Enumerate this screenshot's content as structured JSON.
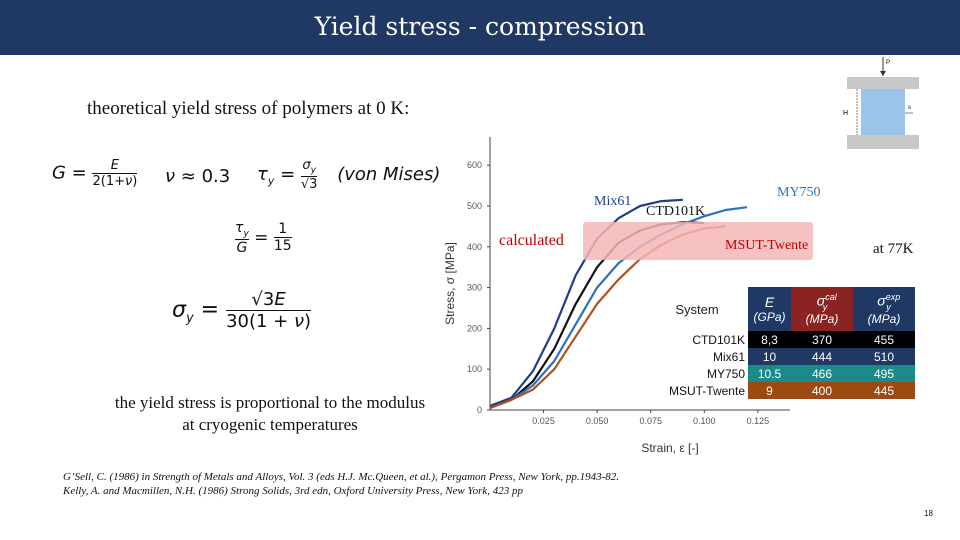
{
  "header": {
    "title": "Yield stress - compression"
  },
  "subtitle": "theoretical yield stress of polymers at 0 K:",
  "equations": {
    "shear_modulus": "G = E / 2(1+ν)",
    "poisson": "ν ≈ 0.3",
    "von_mises": "τy = σy / √3",
    "von_mises_label": "(von Mises)",
    "ratio": "τy / G = 1 / 15",
    "yield": "σy = √3E / 30(1+ν)"
  },
  "note_line1": "the yield stress is proportional to the modulus",
  "note_line2": "at cryogenic temperatures",
  "calculated_label": "calculated",
  "at_temperature": "at 77K",
  "references": [
    "G’Sell, C. (1986) in Strength of Metals and Alloys, Vol. 3 (eds H.J. Mc.Queen, et al.), Pergamon Press, New York, pp.1943-82.",
    "Kelly, A. and Macmillen, N.H. (1986) Strong Solids, 3rd edn, Oxford University Press, New York, 423 pp"
  ],
  "page_number": "18",
  "specimen_labels": {
    "load": "P",
    "height": "H",
    "strain": "s"
  },
  "colors": {
    "title_bar": "#1f3864",
    "mix61": "#1f3e8a",
    "ctd101k": "#111111",
    "my750": "#2e6fc0",
    "msut": "#b5501e",
    "calculated": "#c00000"
  },
  "chart_data": {
    "type": "line",
    "xlabel": "Strain, ε [-]",
    "ylabel": "Stress, σ [MPa]",
    "xlim": [
      0,
      0.14
    ],
    "ylim": [
      0,
      620
    ],
    "xticks": [
      "0.025",
      "0.050",
      "0.075",
      "0.100",
      "0.125"
    ],
    "xtick_values": [
      0.025,
      0.05,
      0.075,
      0.1,
      0.125
    ],
    "yticks": [
      "0",
      "100",
      "200",
      "300",
      "400",
      "500",
      "600"
    ],
    "ytick_values": [
      0,
      100,
      200,
      300,
      400,
      500,
      600
    ],
    "series": [
      {
        "name": "Mix61",
        "color": "#1f3e8a",
        "x": [
          0,
          0.01,
          0.02,
          0.03,
          0.04,
          0.05,
          0.06,
          0.07,
          0.08,
          0.09
        ],
        "y": [
          10,
          30,
          95,
          200,
          330,
          420,
          470,
          500,
          512,
          515
        ]
      },
      {
        "name": "CTD101K",
        "color": "#111111",
        "x": [
          0,
          0.01,
          0.02,
          0.03,
          0.04,
          0.05,
          0.06,
          0.07,
          0.08,
          0.09,
          0.1
        ],
        "y": [
          5,
          25,
          70,
          150,
          260,
          350,
          410,
          440,
          455,
          460,
          458
        ]
      },
      {
        "name": "MY750",
        "color": "#2e6fc0",
        "x": [
          0,
          0.01,
          0.02,
          0.03,
          0.04,
          0.05,
          0.06,
          0.07,
          0.08,
          0.09,
          0.1,
          0.11,
          0.12
        ],
        "y": [
          5,
          25,
          60,
          120,
          210,
          300,
          360,
          400,
          430,
          455,
          475,
          490,
          497
        ]
      },
      {
        "name": "MSUT-Twente",
        "color": "#b5501e",
        "x": [
          0,
          0.01,
          0.02,
          0.03,
          0.04,
          0.05,
          0.06,
          0.07,
          0.08,
          0.09,
          0.1,
          0.11
        ],
        "y": [
          5,
          25,
          50,
          100,
          180,
          260,
          320,
          370,
          405,
          430,
          445,
          450
        ]
      }
    ],
    "labels": [
      {
        "text": "Mix61",
        "color": "#1f3e8a"
      },
      {
        "text": "CTD101K",
        "color": "#111111"
      },
      {
        "text": "MY750",
        "color": "#2e6fc0"
      },
      {
        "text": "MSUT-Twente",
        "color": "#c00000"
      }
    ]
  },
  "table": {
    "headers": [
      "System",
      "E",
      "(GPa)",
      "σ",
      "cal",
      "y",
      "(MPa)",
      "σ",
      "exp",
      "y",
      "(MPa)"
    ],
    "rows": [
      {
        "system": "CTD101K",
        "e": "8,3",
        "cal": "370",
        "exp": "455",
        "color": "#000000"
      },
      {
        "system": "Mix61",
        "e": "10",
        "cal": "444",
        "exp": "510",
        "color": "#1f3864"
      },
      {
        "system": "MY750",
        "e": "10.5",
        "cal": "466",
        "exp": "495",
        "color": "#1a8a8a"
      },
      {
        "system": "MSUT-Twente",
        "e": "9",
        "cal": "400",
        "exp": "445",
        "color": "#9c4a12"
      }
    ]
  }
}
